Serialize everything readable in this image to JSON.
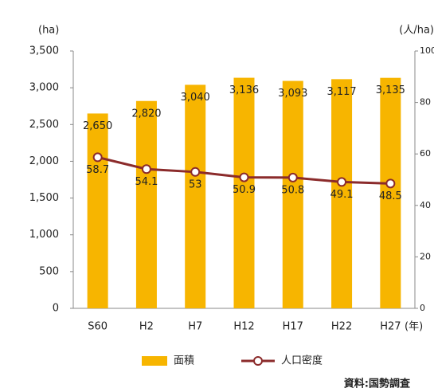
{
  "chart_data": {
    "type": "combo",
    "y_label": "(ha)",
    "y2_label": "(人/ha)",
    "x_label": "(年)",
    "source": "資料:国勢調査",
    "categories": [
      "S60",
      "H2",
      "H7",
      "H12",
      "H17",
      "H22",
      "H27"
    ],
    "series": [
      {
        "name": "面積",
        "type": "bar",
        "color": "#f7b500",
        "values": [
          2650,
          2820,
          3040,
          3136,
          3093,
          3117,
          3135
        ],
        "value_labels": [
          "2,650",
          "2,820",
          "3,040",
          "3,136",
          "3,093",
          "3,117",
          "3,135"
        ],
        "label_color": "#666666"
      },
      {
        "name": "人口密度",
        "type": "line",
        "axis": "y2",
        "color": "#8b2b2b",
        "values": [
          58.7,
          54.1,
          53.0,
          50.9,
          50.8,
          49.1,
          48.5
        ],
        "label_color": "#ff2a2a"
      }
    ],
    "ylim": [
      0,
      3500
    ],
    "yticks": [
      0,
      500,
      {
        "value": 1000,
        "label": "1,000"
      },
      {
        "value": 1500,
        "label": "1,500"
      },
      {
        "value": 2000,
        "label": "2,000"
      },
      {
        "value": 2500,
        "label": "2,500"
      },
      {
        "value": 3000,
        "label": "3,000"
      },
      {
        "value": 3500,
        "label": "3,500"
      }
    ],
    "y2lim": [
      0,
      100
    ],
    "y2ticks": [
      0,
      20,
      40,
      60,
      80,
      100
    ],
    "grid": false
  }
}
